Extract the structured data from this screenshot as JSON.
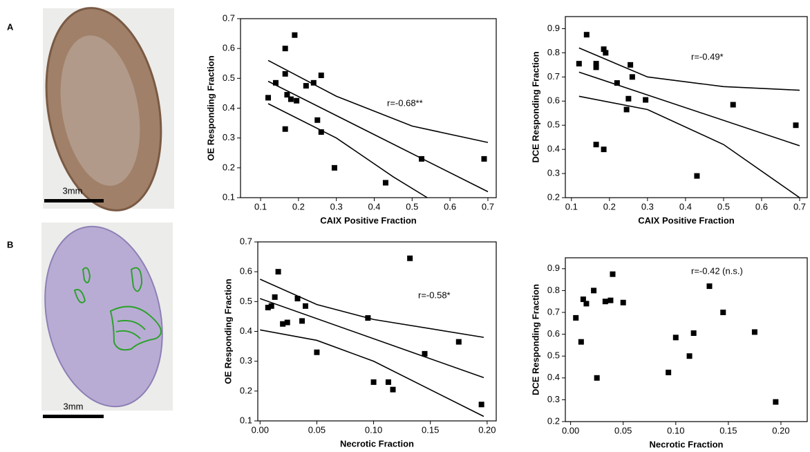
{
  "panels": [
    {
      "label": "A",
      "scale_bar": "3mm"
    },
    {
      "label": "B",
      "scale_bar": "3mm"
    }
  ],
  "chart_data": [
    {
      "type": "scatter",
      "x_label": "CAIX Positive Fraction",
      "y_label": "OE Responding Fraction",
      "annotation": "r=-0.68**",
      "color": "#000000",
      "xlim": [
        0.047,
        0.722
      ],
      "ylim": [
        0.1,
        0.7
      ],
      "xticks": [
        0.1,
        0.2,
        0.3,
        0.4,
        0.5,
        0.6,
        0.7
      ],
      "yticks": [
        0.1,
        0.2,
        0.3,
        0.4,
        0.5,
        0.6,
        0.7
      ],
      "x": [
        0.12,
        0.14,
        0.165,
        0.165,
        0.17,
        0.165,
        0.18,
        0.19,
        0.195,
        0.22,
        0.24,
        0.25,
        0.26,
        0.26,
        0.295,
        0.43,
        0.525,
        0.69
      ],
      "y": [
        0.435,
        0.485,
        0.515,
        0.6,
        0.445,
        0.33,
        0.43,
        0.645,
        0.425,
        0.475,
        0.485,
        0.36,
        0.51,
        0.32,
        0.2,
        0.15,
        0.23,
        0.23
      ],
      "lines": [
        {
          "x": [
            0.12,
            0.7
          ],
          "y": [
            0.49,
            0.12
          ]
        },
        {
          "x": [
            0.12,
            0.3,
            0.5,
            0.7
          ],
          "y": [
            0.56,
            0.44,
            0.34,
            0.285
          ]
        },
        {
          "x": [
            0.12,
            0.3,
            0.45,
            0.54
          ],
          "y": [
            0.415,
            0.3,
            0.17,
            0.1
          ]
        }
      ]
    },
    {
      "type": "scatter",
      "x_label": "CAIX Positive Fraction",
      "y_label": "DCE Responding Fraction",
      "annotation": "r=-0.49*",
      "color": "#000000",
      "xlim": [
        0.084,
        0.72
      ],
      "ylim": [
        0.2,
        0.95
      ],
      "xticks": [
        0.1,
        0.2,
        0.3,
        0.4,
        0.5,
        0.6,
        0.7
      ],
      "yticks": [
        0.2,
        0.3,
        0.4,
        0.5,
        0.6,
        0.7,
        0.8,
        0.9
      ],
      "x": [
        0.12,
        0.14,
        0.165,
        0.165,
        0.165,
        0.185,
        0.185,
        0.19,
        0.22,
        0.245,
        0.25,
        0.255,
        0.26,
        0.295,
        0.43,
        0.525,
        0.69
      ],
      "y": [
        0.755,
        0.875,
        0.755,
        0.74,
        0.42,
        0.4,
        0.815,
        0.8,
        0.675,
        0.565,
        0.61,
        0.75,
        0.7,
        0.605,
        0.29,
        0.585,
        0.5
      ],
      "lines": [
        {
          "x": [
            0.12,
            0.7
          ],
          "y": [
            0.72,
            0.415
          ]
        },
        {
          "x": [
            0.12,
            0.3,
            0.5,
            0.7
          ],
          "y": [
            0.82,
            0.7,
            0.66,
            0.645
          ]
        },
        {
          "x": [
            0.12,
            0.3,
            0.5,
            0.7
          ],
          "y": [
            0.62,
            0.565,
            0.42,
            0.2
          ]
        }
      ]
    },
    {
      "type": "scatter",
      "x_label": "Necrotic Fraction",
      "y_label": "OE Responding Fraction",
      "annotation": "r=-0.58*",
      "color": "#000000",
      "xlim": [
        -0.002,
        0.208
      ],
      "ylim": [
        0.1,
        0.7
      ],
      "xticks": [
        {
          "value": 0,
          "label": "0.00"
        },
        {
          "value": 0.05,
          "label": "0.05"
        },
        {
          "value": 0.1,
          "label": "0.10"
        },
        {
          "value": 0.15,
          "label": "0.15"
        },
        {
          "value": 0.2,
          "label": "0.20"
        }
      ],
      "yticks": [
        0.1,
        0.2,
        0.3,
        0.4,
        0.5,
        0.6,
        0.7
      ],
      "x": [
        0.007,
        0.01,
        0.013,
        0.016,
        0.02,
        0.024,
        0.033,
        0.037,
        0.04,
        0.05,
        0.095,
        0.1,
        0.113,
        0.117,
        0.132,
        0.145,
        0.175,
        0.195
      ],
      "y": [
        0.48,
        0.485,
        0.515,
        0.6,
        0.425,
        0.43,
        0.51,
        0.435,
        0.485,
        0.33,
        0.445,
        0.23,
        0.23,
        0.205,
        0.645,
        0.325,
        0.365,
        0.155
      ],
      "lines": [
        {
          "x": [
            0,
            0.197
          ],
          "y": [
            0.51,
            0.245
          ]
        },
        {
          "x": [
            0,
            0.05,
            0.1,
            0.197
          ],
          "y": [
            0.575,
            0.49,
            0.44,
            0.38
          ]
        },
        {
          "x": [
            0,
            0.05,
            0.1,
            0.197
          ],
          "y": [
            0.405,
            0.37,
            0.3,
            0.115
          ]
        }
      ]
    },
    {
      "type": "scatter",
      "x_label": "Necrotic Fraction",
      "y_label": "DCE Responding Fraction",
      "annotation": "r=-0.42 (n.s.)",
      "color": "#000000",
      "xlim": [
        -0.005,
        0.225
      ],
      "ylim": [
        0.2,
        0.95
      ],
      "xticks": [
        {
          "value": 0,
          "label": "0.00"
        },
        {
          "value": 0.05,
          "label": "0.05"
        },
        {
          "value": 0.1,
          "label": "0.10"
        },
        {
          "value": 0.15,
          "label": "0.15"
        },
        {
          "value": 0.2,
          "label": "0.20"
        }
      ],
      "yticks": [
        0.2,
        0.3,
        0.4,
        0.5,
        0.6,
        0.7,
        0.8,
        0.9
      ],
      "x": [
        0.005,
        0.01,
        0.012,
        0.015,
        0.022,
        0.025,
        0.033,
        0.038,
        0.04,
        0.05,
        0.093,
        0.1,
        0.113,
        0.117,
        0.132,
        0.145,
        0.175,
        0.195
      ],
      "y": [
        0.675,
        0.565,
        0.76,
        0.74,
        0.8,
        0.4,
        0.75,
        0.755,
        0.875,
        0.745,
        0.425,
        0.585,
        0.5,
        0.605,
        0.82,
        0.7,
        0.61,
        0.29
      ],
      "lines": []
    }
  ]
}
